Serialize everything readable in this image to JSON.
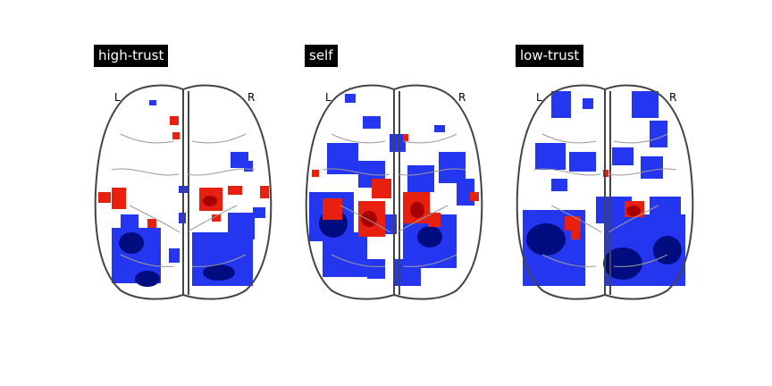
{
  "figure": {
    "panels": [
      {
        "title": "high-trust",
        "left_label": "L",
        "right_label": "R",
        "colors": {
          "positive": "#e8200f",
          "negative": "#1a2cf0"
        }
      },
      {
        "title": "self",
        "left_label": "L",
        "right_label": "R",
        "colors": {
          "positive": "#e8200f",
          "negative": "#1a2cf0"
        }
      },
      {
        "title": "low-trust",
        "left_label": "L",
        "right_label": "R",
        "colors": {
          "positive": "#e8200f",
          "negative": "#1a2cf0"
        }
      }
    ]
  }
}
